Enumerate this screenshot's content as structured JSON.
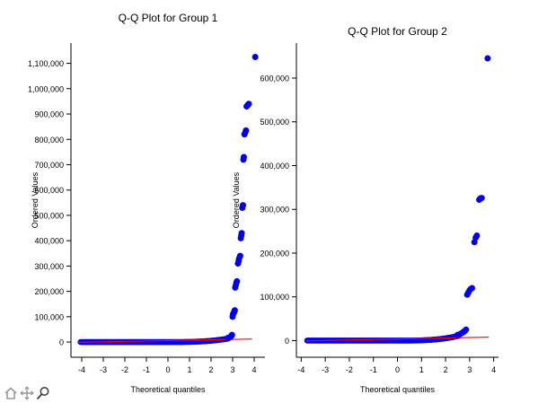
{
  "chart_data": [
    {
      "type": "scatter",
      "title": "Q-Q Plot for Group 1",
      "xlabel": "Theoretical quantiles",
      "ylabel": "Ordered Values",
      "xlim": [
        -4.5,
        4.5
      ],
      "ylim": [
        -60000,
        1180000
      ],
      "xticks": [
        -4,
        -3,
        -2,
        -1,
        0,
        1,
        2,
        3,
        4
      ],
      "yticks": [
        0,
        100000,
        200000,
        300000,
        400000,
        500000,
        600000,
        700000,
        800000,
        900000,
        1000000,
        1100000
      ],
      "line": {
        "x": [
          -4.2,
          3.9
        ],
        "y": [
          -1000,
          12000
        ]
      },
      "series": [
        {
          "color": "#0000ee",
          "x": [
            2.8,
            2.9,
            2.95,
            2.97,
            3.0,
            3.02,
            3.05,
            3.08,
            3.1,
            3.12,
            3.15,
            3.18,
            3.2,
            3.25,
            3.28,
            3.3,
            3.35,
            3.38,
            3.4,
            3.42,
            3.45,
            3.48,
            3.5,
            3.52,
            3.55,
            3.6,
            3.62,
            3.65,
            3.7,
            3.75,
            4.05
          ],
          "y": [
            17000,
            20000,
            25000,
            28000,
            100000,
            110000,
            115000,
            120000,
            125000,
            215000,
            225000,
            235000,
            240000,
            310000,
            320000,
            330000,
            340000,
            410000,
            420000,
            430000,
            530000,
            540000,
            720000,
            730000,
            820000,
            830000,
            835000,
            930000,
            935000,
            940000,
            1125000
          ]
        }
      ]
    },
    {
      "type": "scatter",
      "title": "Q-Q Plot for Group 2",
      "xlabel": "Theoretical quantiles",
      "ylabel": "Ordered Values",
      "xlim": [
        -4.2,
        4.2
      ],
      "ylim": [
        -38000,
        680000
      ],
      "xticks": [
        -4,
        -3,
        -2,
        -1,
        0,
        1,
        2,
        3,
        4
      ],
      "yticks": [
        0,
        100000,
        200000,
        300000,
        400000,
        500000,
        600000
      ],
      "line": {
        "x": [
          -3.8,
          3.8
        ],
        "y": [
          -600,
          8000
        ]
      },
      "series": [
        {
          "color": "#0000ee",
          "x": [
            2.5,
            2.6,
            2.7,
            2.75,
            2.8,
            2.85,
            2.9,
            2.95,
            3.0,
            3.05,
            3.1,
            3.2,
            3.25,
            3.3,
            3.4,
            3.45,
            3.5,
            3.75
          ],
          "y": [
            13000,
            15000,
            18000,
            20000,
            22000,
            25000,
            105000,
            110000,
            115000,
            118000,
            120000,
            225000,
            235000,
            240000,
            322000,
            325000,
            326000,
            645000
          ]
        }
      ]
    }
  ],
  "toolbar": {
    "home_title": "Reset",
    "pan_title": "Pan",
    "zoom_title": "Zoom"
  }
}
